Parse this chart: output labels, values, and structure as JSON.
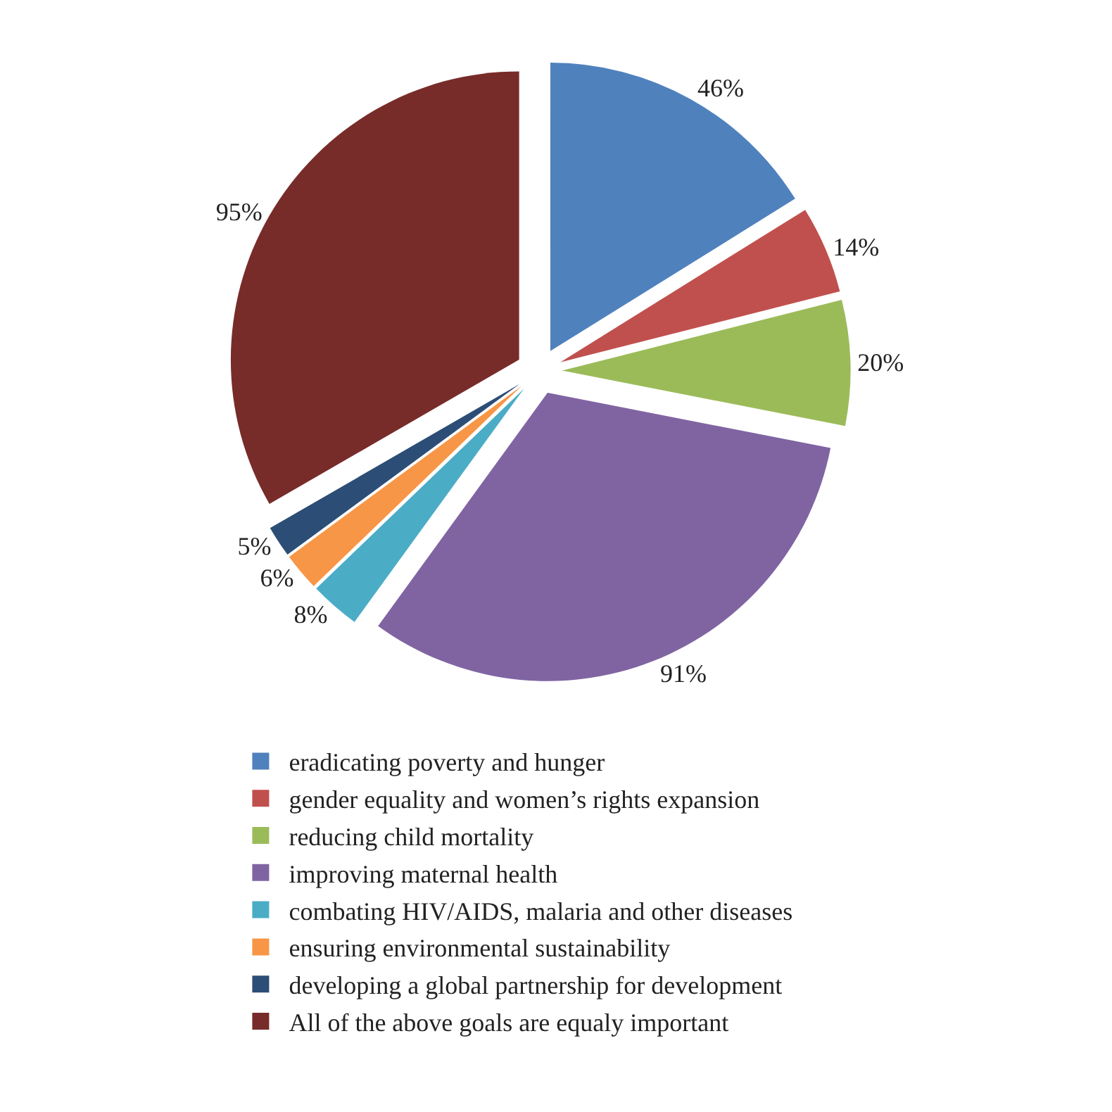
{
  "chart_data": {
    "type": "pie",
    "categories": [
      "eradicating poverty and hunger",
      "gender equality and women’s rights expansion",
      "reducing child mortality",
      "improving maternal health",
      "combating HIV/AIDS, malaria and other diseases",
      "ensuring environmental sustainability",
      "developing a global partnership for development",
      "All of the above goals are equaly important"
    ],
    "values": [
      46,
      14,
      20,
      91,
      8,
      6,
      5,
      95
    ],
    "value_labels": [
      "46%",
      "14%",
      "20%",
      "91%",
      "8%",
      "6%",
      "5%",
      "95%"
    ],
    "colors": [
      "#4f81bd",
      "#c0504d",
      "#9bbb59",
      "#8064a2",
      "#4bacc6",
      "#f79646",
      "#2c4d75",
      "#772c2a"
    ],
    "legend": "bottom"
  }
}
